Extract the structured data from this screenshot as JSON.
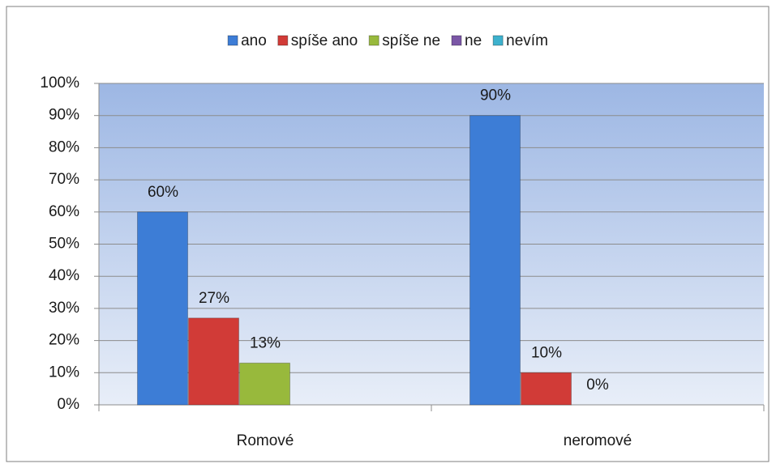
{
  "chart_data": {
    "type": "bar",
    "categories": [
      "Romové",
      "neromové"
    ],
    "series": [
      {
        "name": "ano",
        "color": "#3d7dd6",
        "values": [
          60,
          90
        ],
        "value_labels": [
          "60%",
          "90%"
        ]
      },
      {
        "name": "spíše ano",
        "color": "#d13b37",
        "values": [
          27,
          10
        ],
        "value_labels": [
          "27%",
          "10%"
        ]
      },
      {
        "name": "spíše ne",
        "color": "#98b93c",
        "values": [
          13,
          0
        ],
        "value_labels": [
          "13%",
          "0%"
        ]
      },
      {
        "name": "ne",
        "color": "#7b57a6",
        "values": [
          0,
          0
        ]
      },
      {
        "name": "nevím",
        "color": "#3db1cd",
        "values": [
          0,
          0
        ]
      }
    ],
    "ylim": [
      0,
      100
    ],
    "yticks": [
      {
        "value": 0,
        "label": "0%"
      },
      {
        "value": 10,
        "label": "10%"
      },
      {
        "value": 20,
        "label": "20%"
      },
      {
        "value": 30,
        "label": "30%"
      },
      {
        "value": 40,
        "label": "40%"
      },
      {
        "value": 50,
        "label": "50%"
      },
      {
        "value": 60,
        "label": "60%"
      },
      {
        "value": 70,
        "label": "70%"
      },
      {
        "value": 80,
        "label": "80%"
      },
      {
        "value": 90,
        "label": "90%"
      },
      {
        "value": 100,
        "label": "100%"
      }
    ],
    "grid": true,
    "legend": "top"
  }
}
